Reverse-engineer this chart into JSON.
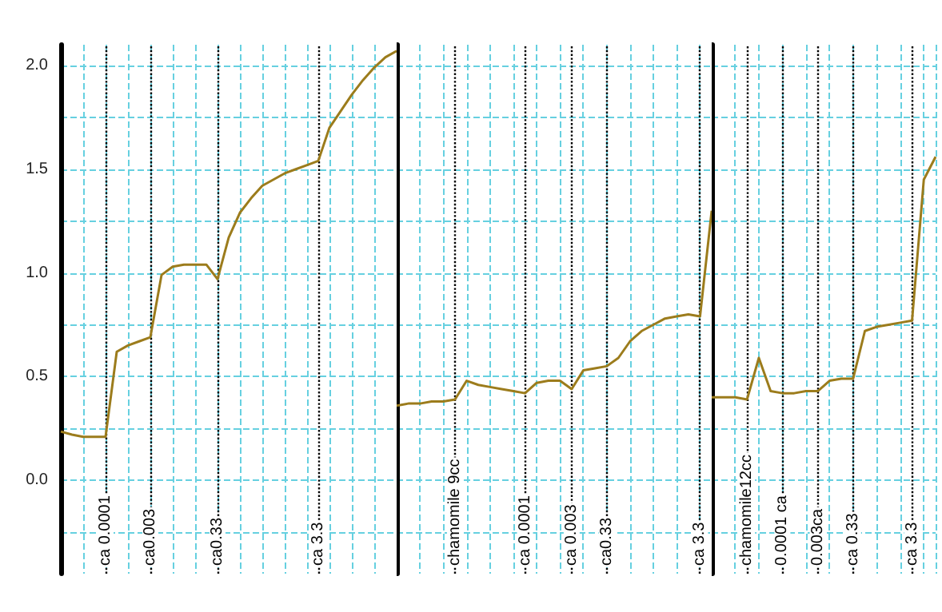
{
  "chart_data": [
    {
      "type": "line",
      "color": "#9c7c1c",
      "marker": "none",
      "grid": true,
      "categories": [
        null,
        null,
        null,
        null,
        "ca 0.0001",
        null,
        null,
        null,
        "ca0.003",
        null,
        null,
        null,
        null,
        null,
        "ca0.33",
        null,
        null,
        null,
        null,
        null,
        null,
        null,
        null,
        "ca 3.3",
        null,
        null,
        null,
        null,
        null,
        null,
        null
      ],
      "values": [
        0.235,
        0.22,
        0.21,
        0.21,
        0.21,
        0.62,
        0.65,
        0.67,
        0.69,
        0.99,
        1.03,
        1.04,
        1.04,
        1.04,
        0.97,
        1.17,
        1.29,
        1.36,
        1.42,
        1.45,
        1.48,
        1.5,
        1.52,
        1.54,
        1.7,
        1.78,
        1.86,
        1.93,
        1.99,
        2.04,
        2.07
      ],
      "ylim": [
        -0.45,
        2.1
      ],
      "yticks": [
        {
          "value": -0.25,
          "label": null
        },
        {
          "value": 0,
          "label": "0.0"
        },
        {
          "value": 0.25,
          "label": null
        },
        {
          "value": 0.5,
          "label": "0.5"
        },
        {
          "value": 0.75,
          "label": null
        },
        {
          "value": 1,
          "label": "1.0"
        },
        {
          "value": 1.25,
          "label": null
        },
        {
          "value": 1.5,
          "label": "1.5"
        },
        {
          "value": 1.75,
          "label": null
        },
        {
          "value": 2,
          "label": "2.0"
        }
      ]
    },
    {
      "type": "line",
      "color": "#9c7c1c",
      "marker": "none",
      "grid": true,
      "tick_labels": "x",
      "categories": [
        null,
        null,
        null,
        null,
        null,
        "chamomile 9cc",
        null,
        null,
        null,
        null,
        null,
        "ca 0.0001",
        null,
        null,
        null,
        "ca 0.003",
        null,
        null,
        "ca0.33",
        null,
        null,
        null,
        null,
        null,
        null,
        null,
        "ca 3.3",
        null
      ],
      "values": [
        0.36,
        0.37,
        0.37,
        0.38,
        0.38,
        0.39,
        0.48,
        0.46,
        0.45,
        0.44,
        0.43,
        0.42,
        0.47,
        0.48,
        0.48,
        0.44,
        0.53,
        0.54,
        0.55,
        0.59,
        0.67,
        0.72,
        0.75,
        0.78,
        0.79,
        0.8,
        0.79,
        1.3
      ],
      "ylim": [
        -0.45,
        2.1
      ],
      "yticks": [
        {
          "value": -0.25,
          "label": null
        },
        {
          "value": 0,
          "label": null
        },
        {
          "value": 0.25,
          "label": null
        },
        {
          "value": 0.5,
          "label": null
        },
        {
          "value": 0.75,
          "label": null
        },
        {
          "value": 1,
          "label": null
        },
        {
          "value": 1.25,
          "label": null
        },
        {
          "value": 1.5,
          "label": null
        },
        {
          "value": 1.75,
          "label": null
        },
        {
          "value": 2,
          "label": null
        }
      ]
    },
    {
      "type": "line",
      "color": "#9c7c1c",
      "marker": "none",
      "grid": true,
      "tick_labels": "x",
      "categories": [
        null,
        null,
        null,
        "chamomile12cc",
        null,
        null,
        "0.0001 ca",
        null,
        null,
        "0.003ca",
        null,
        null,
        "ca 0.33",
        null,
        null,
        null,
        null,
        "ca 3.3",
        null,
        null
      ],
      "values": [
        0.4,
        0.4,
        0.4,
        0.39,
        0.59,
        0.43,
        0.42,
        0.42,
        0.43,
        0.43,
        0.48,
        0.49,
        0.49,
        0.72,
        0.74,
        0.75,
        0.76,
        0.77,
        1.45,
        1.56
      ],
      "ylim": [
        -0.45,
        2.1
      ],
      "yticks": [
        {
          "value": -0.25,
          "label": null
        },
        {
          "value": 0,
          "label": null
        },
        {
          "value": 0.25,
          "label": null
        },
        {
          "value": 0.5,
          "label": null
        },
        {
          "value": 0.75,
          "label": null
        },
        {
          "value": 1,
          "label": null
        },
        {
          "value": 1.25,
          "label": null
        },
        {
          "value": 1.5,
          "label": null
        },
        {
          "value": 1.75,
          "label": null
        },
        {
          "value": 2,
          "label": null
        }
      ]
    }
  ]
}
